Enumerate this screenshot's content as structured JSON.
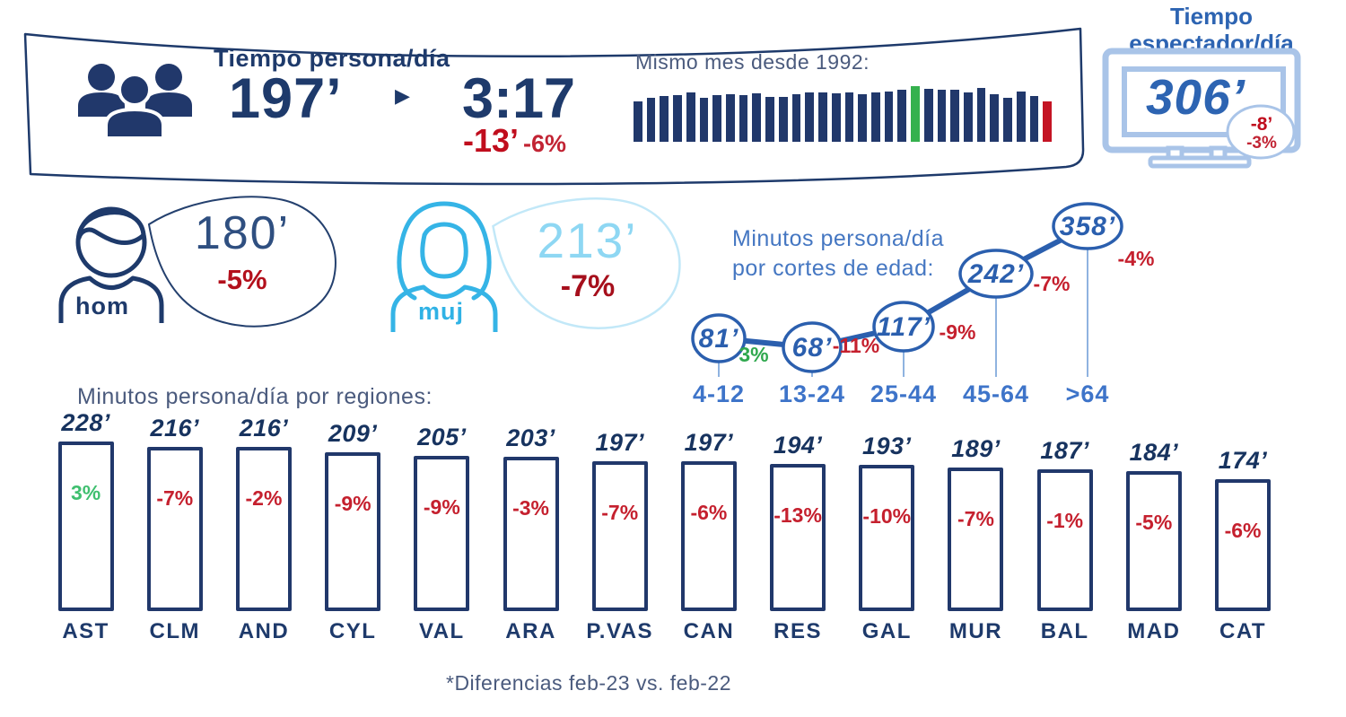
{
  "colors": {
    "navy": "#21386b",
    "text_navy": "#1e3a6b",
    "medium_blue": "#2d64b2",
    "bubble_blue": "#2b5fae",
    "age_label_blue": "#3e74c9",
    "age_title_blue": "#4577c2",
    "tv_frame_blue": "#a9c4e8",
    "cyan": "#35b4e6",
    "light_cyan_text": "#8ed7f3",
    "red": "#c00d1d",
    "dark_red": "#b3101c",
    "green": "#35b14e",
    "gray_blue_text": "#4a5a7d"
  },
  "header": {
    "title": "Tiempo persona/día",
    "minutes": "197’",
    "clock_time": "3:17",
    "delta_minutes": "-13’",
    "delta_pct": "-6%",
    "history_title": "Mismo mes desde 1992:"
  },
  "spectator": {
    "title_line1": "Tiempo",
    "title_line2": "espectador/día",
    "minutes": "306’",
    "delta_minutes": "-8’",
    "delta_pct": "-3%"
  },
  "gender": {
    "male": {
      "label": "hom",
      "minutes": "180’",
      "delta_pct": "-5%"
    },
    "female": {
      "label": "muj",
      "minutes": "213’",
      "delta_pct": "-7%"
    }
  },
  "age_section": {
    "title_line1": "Minutos persona/día",
    "title_line2": "por cortes de edad:"
  },
  "regions_section": {
    "title": "Minutos  persona/día por regiones:"
  },
  "footnote": "*Diferencias feb-23 vs. feb-22",
  "chart_data": [
    {
      "type": "bar",
      "title": "Mismo mes desde 1992:",
      "x_range": "1992-2023",
      "values_pct_of_max": [
        73,
        79,
        83,
        84,
        88,
        79,
        84,
        86,
        84,
        87,
        80,
        80,
        85,
        88,
        88,
        87,
        88,
        85,
        88,
        91,
        93,
        100,
        95,
        94,
        93,
        88,
        96,
        86,
        79,
        90,
        83,
        73
      ],
      "green_index": 21,
      "red_index": 31
    },
    {
      "type": "line",
      "title": "Minutos persona/día por cortes de edad:",
      "categories": [
        "4-12",
        "13-24",
        "25-44",
        "45-64",
        ">64"
      ],
      "values": [
        81,
        68,
        117,
        242,
        358
      ],
      "value_labels": [
        "81’",
        "68’",
        "117’",
        "242’",
        "358’"
      ],
      "deltas": [
        "3%",
        "-11%",
        "-9%",
        "-7%",
        "-4%"
      ],
      "delta_colors": [
        "green",
        "red",
        "red",
        "red",
        "red"
      ]
    },
    {
      "type": "bar",
      "title": "Minutos persona/día por regiones:",
      "categories": [
        "AST",
        "CLM",
        "AND",
        "CYL",
        "VAL",
        "ARA",
        "P.VAS",
        "CAN",
        "RES",
        "GAL",
        "MUR",
        "BAL",
        "MAD",
        "CAT"
      ],
      "values": [
        228,
        216,
        216,
        209,
        205,
        203,
        197,
        197,
        194,
        193,
        189,
        187,
        184,
        174
      ],
      "value_labels": [
        "228’",
        "216’",
        "216’",
        "209’",
        "205’",
        "203’",
        "197’",
        "197’",
        "194’",
        "193’",
        "189’",
        "187’",
        "184’",
        "174’"
      ],
      "deltas": [
        "3%",
        "-7%",
        "-2%",
        "-9%",
        "-9%",
        "-3%",
        "-7%",
        "-6%",
        "-13%",
        "-10%",
        "-7%",
        "-1%",
        "-5%",
        "-6%"
      ],
      "delta_colors": [
        "green",
        "red",
        "red",
        "red",
        "red",
        "red",
        "red",
        "red",
        "red",
        "red",
        "red",
        "red",
        "red",
        "red"
      ]
    }
  ]
}
